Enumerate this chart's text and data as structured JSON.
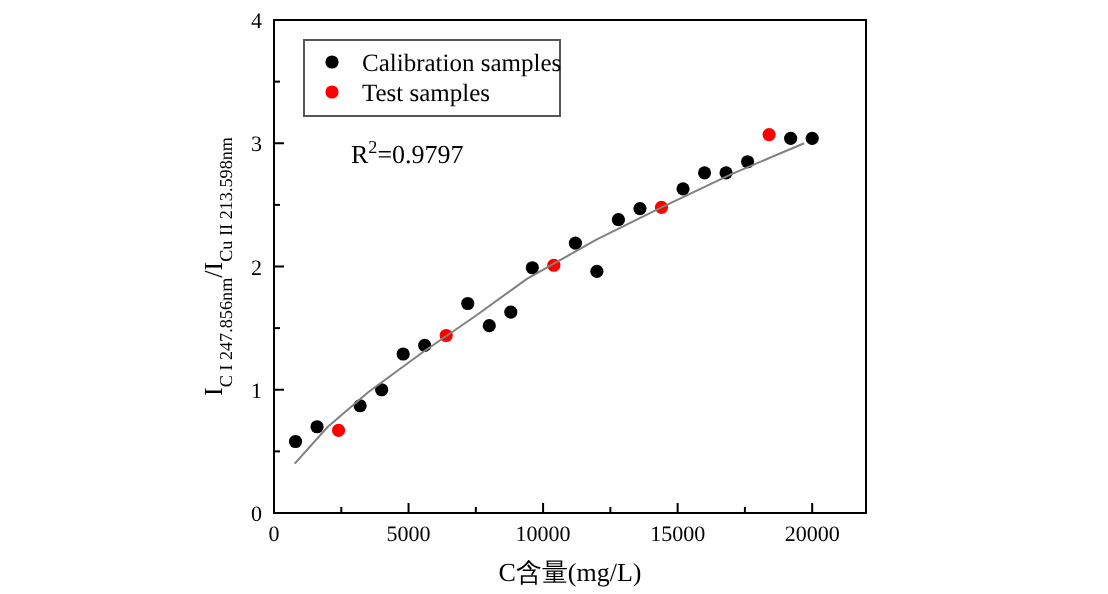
{
  "chart_data": {
    "type": "scatter",
    "xlabel": "C含量(mg/L)",
    "ylabel": "I$_{C I 247.856nm}$/I$_{Cu II 213.598nm}$",
    "annotations": [
      "R$^{2}$=0.9797"
    ],
    "xlim": [
      0,
      22000
    ],
    "xticks": [
      0,
      {
        "value": 2500,
        "label": null
      },
      5000,
      {
        "value": 7500,
        "label": null
      },
      10000,
      {
        "value": 12500,
        "label": null
      },
      15000,
      {
        "value": 17500,
        "label": null
      },
      20000
    ],
    "ylim": [
      0,
      4
    ],
    "yticks": [
      0,
      {
        "value": 0.5,
        "label": null
      },
      1,
      {
        "value": 1.5,
        "label": null
      },
      2,
      {
        "value": 2.5,
        "label": null
      },
      3,
      {
        "value": 3.5,
        "label": null
      },
      4
    ],
    "grid": false,
    "legend": "top left",
    "marker": "circle",
    "series": [
      {
        "name": "Calibration samples",
        "color": "#000000",
        "x": [
          800,
          1600,
          3200,
          4000,
          4800,
          5600,
          7200,
          8000,
          8800,
          9600,
          11200,
          12000,
          12800,
          13600,
          15200,
          16000,
          16800,
          17600,
          19200,
          20000
        ],
        "values": [
          0.58,
          0.7,
          0.87,
          1.0,
          1.29,
          1.36,
          1.7,
          1.52,
          1.63,
          1.99,
          2.19,
          1.96,
          2.38,
          2.47,
          2.63,
          2.76,
          2.76,
          2.85,
          3.04,
          3.04
        ]
      },
      {
        "name": "Test samples",
        "color": "#ff0000",
        "x": [
          2400,
          6400,
          10400,
          14400,
          18400
        ],
        "values": [
          0.67,
          1.44,
          2.01,
          2.48,
          3.07
        ]
      },
      {
        "type": "line",
        "color": "#808080",
        "marker": "none",
        "x": [
          770,
          2000,
          3500,
          5500,
          7500,
          9400,
          12000,
          14400,
          17000,
          19700
        ],
        "values": [
          0.4,
          0.7,
          0.98,
          1.3,
          1.6,
          1.9,
          2.22,
          2.48,
          2.75,
          3.0
        ]
      }
    ]
  }
}
